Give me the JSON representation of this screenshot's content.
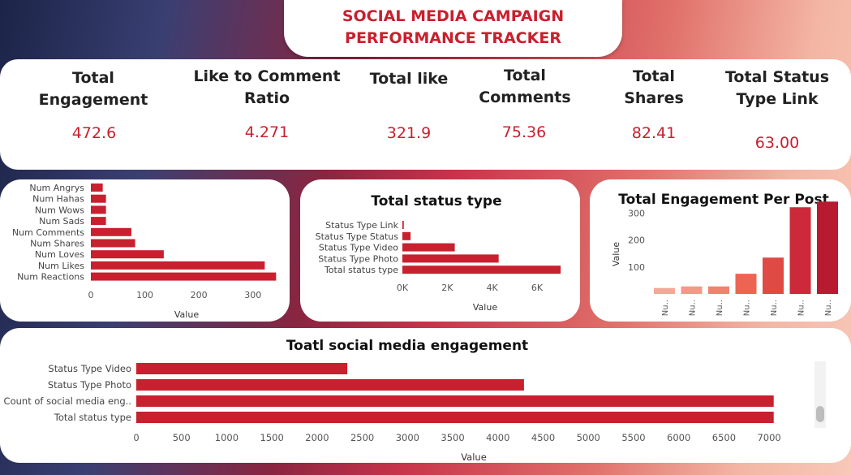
{
  "header": {
    "title_line1": "SOCIAL MEDIA CAMPAIGN",
    "title_line2": "PERFORMANCE TRACKER"
  },
  "kpis": [
    {
      "label": "Total Engagement",
      "value": "472.6"
    },
    {
      "label": "Like to Comment Ratio",
      "value": "4.271"
    },
    {
      "label": "Total like",
      "value": "321.9"
    },
    {
      "label": "Total Comments",
      "value": "75.36"
    },
    {
      "label": "Total Shares",
      "value": "82.41"
    },
    {
      "label_line1": "Total Status",
      "label_line2": "Type Link",
      "value": "63.00"
    }
  ],
  "colors": {
    "bar": "#c8202e",
    "title": "#c8202e"
  },
  "chart_data": [
    {
      "type": "bar",
      "orientation": "horizontal",
      "title": "",
      "xlabel": "Value",
      "categories": [
        "Num Angrys",
        "Num Hahas",
        "Num Wows",
        "Num Sads",
        "Num Comments",
        "Num Shares",
        "Num Loves",
        "Num Likes",
        "Num Reactions"
      ],
      "values": [
        22,
        28,
        28,
        28,
        75,
        82,
        135,
        322,
        343
      ],
      "xlim": [
        0,
        350
      ],
      "xticks": [
        "0",
        "100",
        "200",
        "300"
      ]
    },
    {
      "type": "bar",
      "orientation": "horizontal",
      "title": "Total status type",
      "xlabel": "Value",
      "categories": [
        "Status Type Link",
        "Status Type Status",
        "Status Type Video",
        "Status Type Photo",
        "Total status type"
      ],
      "values": [
        63,
        365,
        2334,
        4288,
        7050
      ],
      "xlim": [
        0,
        7300
      ],
      "xticks": [
        "0K",
        "2K",
        "4K",
        "6K"
      ]
    },
    {
      "type": "bar",
      "orientation": "vertical",
      "title": "Total Engagement Per Post",
      "ylabel": "Value",
      "categories": [
        "Nu..",
        "Nu..",
        "Nu..",
        "Nu..",
        "Nu..",
        "Nu..",
        "Nu.."
      ],
      "values": [
        22,
        28,
        28,
        75,
        135,
        322,
        343
      ],
      "ylim": [
        0,
        380
      ],
      "yticks": [
        "100",
        "200",
        "300"
      ],
      "colors": [
        "#f5a898",
        "#f49888",
        "#f28270",
        "#ee6452",
        "#e04a44",
        "#cc2a3a",
        "#b81a30"
      ]
    },
    {
      "type": "bar",
      "orientation": "horizontal",
      "title": "Toatl social media engagement",
      "xlabel": "Value",
      "categories": [
        "Status Type Video",
        "Status Type Photo",
        "Count of social media eng..",
        "Total status type"
      ],
      "values": [
        2334,
        4288,
        7050,
        7050
      ],
      "xlim": [
        0,
        7250
      ],
      "xticks": [
        "0",
        "500",
        "1000",
        "1500",
        "2000",
        "2500",
        "3000",
        "3500",
        "4000",
        "4500",
        "5000",
        "5500",
        "6000",
        "6500",
        "7000"
      ]
    }
  ]
}
